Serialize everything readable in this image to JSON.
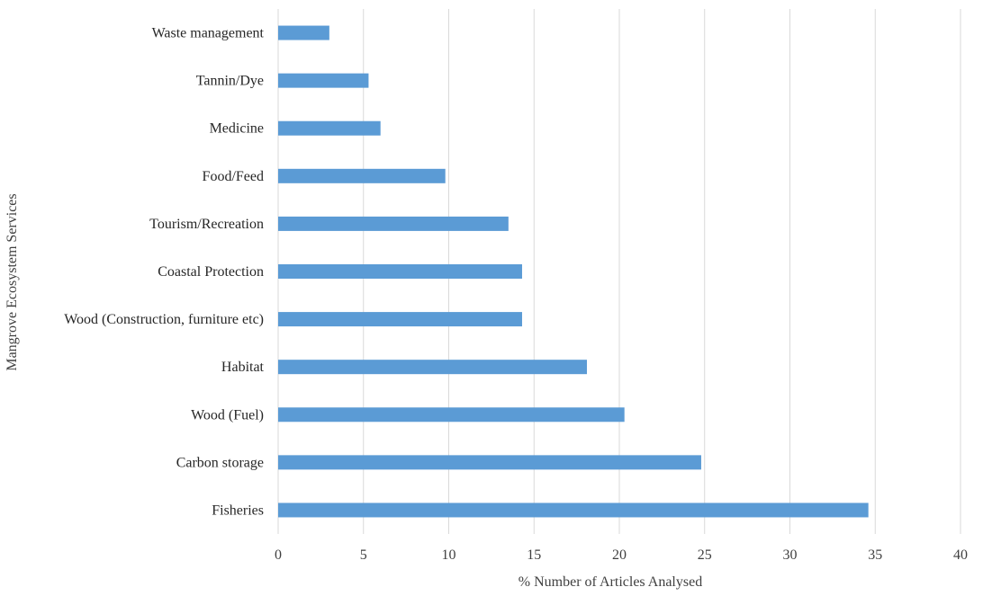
{
  "chart_data": {
    "type": "bar",
    "orientation": "horizontal",
    "categories": [
      "Fisheries",
      "Carbon storage",
      "Wood (Fuel)",
      "Habitat",
      "Wood (Construction, furniture etc)",
      "Coastal Protection",
      "Tourism/Recreation",
      "Food/Feed",
      "Medicine",
      "Tannin/Dye",
      "Waste management"
    ],
    "values": [
      34.6,
      24.8,
      20.3,
      18.1,
      14.3,
      14.3,
      13.5,
      9.8,
      6.0,
      5.3,
      3.0
    ],
    "xlabel": "% Number  of Articles  Analysed",
    "ylabel": "Mangrove  Ecosystem  Services",
    "xlim": [
      0,
      40
    ],
    "xticks": [
      0,
      5,
      10,
      15,
      20,
      25,
      30,
      35,
      40
    ],
    "grid": "vertical",
    "legend": "none",
    "bar_color": "#5b9bd5",
    "grid_color": "#d9d9d9"
  }
}
